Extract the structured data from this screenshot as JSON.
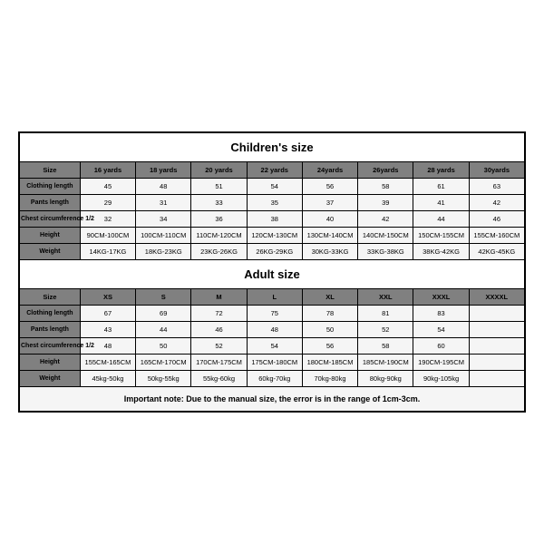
{
  "children": {
    "title": "Children's size",
    "headers": [
      "Size",
      "16 yards",
      "18 yards",
      "20 yards",
      "22 yards",
      "24yards",
      "26yards",
      "28 yards",
      "30yards"
    ],
    "rows": [
      {
        "label": "Clothing length",
        "cells": [
          "45",
          "48",
          "51",
          "54",
          "56",
          "58",
          "61",
          "63"
        ]
      },
      {
        "label": "Pants length",
        "cells": [
          "29",
          "31",
          "33",
          "35",
          "37",
          "39",
          "41",
          "42"
        ]
      },
      {
        "label": "Chest circumference 1/2",
        "cells": [
          "32",
          "34",
          "36",
          "38",
          "40",
          "42",
          "44",
          "46"
        ]
      },
      {
        "label": "Height",
        "cells": [
          "90CM-100CM",
          "100CM-110CM",
          "110CM-120CM",
          "120CM-130CM",
          "130CM-140CM",
          "140CM-150CM",
          "150CM-155CM",
          "155CM-160CM"
        ]
      },
      {
        "label": "Weight",
        "cells": [
          "14KG-17KG",
          "18KG-23KG",
          "23KG-26KG",
          "26KG-29KG",
          "30KG-33KG",
          "33KG-38KG",
          "38KG-42KG",
          "42KG-45KG"
        ]
      }
    ]
  },
  "adult": {
    "title": "Adult size",
    "headers": [
      "Size",
      "XS",
      "S",
      "M",
      "L",
      "XL",
      "XXL",
      "XXXL",
      "XXXXL"
    ],
    "rows": [
      {
        "label": "Clothing length",
        "cells": [
          "67",
          "69",
          "72",
          "75",
          "78",
          "81",
          "83",
          ""
        ]
      },
      {
        "label": "Pants length",
        "cells": [
          "43",
          "44",
          "46",
          "48",
          "50",
          "52",
          "54",
          ""
        ]
      },
      {
        "label": "Chest circumference 1/2",
        "cells": [
          "48",
          "50",
          "52",
          "54",
          "56",
          "58",
          "60",
          ""
        ]
      },
      {
        "label": "Height",
        "cells": [
          "155CM-165CM",
          "165CM-170CM",
          "170CM-175CM",
          "175CM-180CM",
          "180CM-185CM",
          "185CM-190CM",
          "190CM-195CM",
          ""
        ]
      },
      {
        "label": "Weight",
        "cells": [
          "45kg-50kg",
          "50kg-55kg",
          "55kg-60kg",
          "60kg-70kg",
          "70kg-80kg",
          "80kg-90kg",
          "90kg-105kg",
          ""
        ]
      }
    ]
  },
  "note": "Important note: Due to the manual size, the error is in the range of 1cm-3cm.",
  "style": {
    "border_color": "#000000",
    "header_bg": "#808080",
    "label_bg": "#808080",
    "data_bg": "#f5f5f5",
    "title_fontsize": 13,
    "cell_fontsize": 8
  }
}
